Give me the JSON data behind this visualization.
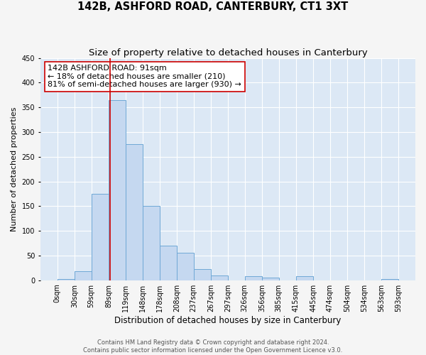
{
  "title": "142B, ASHFORD ROAD, CANTERBURY, CT1 3XT",
  "subtitle": "Size of property relative to detached houses in Canterbury",
  "xlabel": "Distribution of detached houses by size in Canterbury",
  "ylabel": "Number of detached properties",
  "footer_line1": "Contains HM Land Registry data © Crown copyright and database right 2024.",
  "footer_line2": "Contains public sector information licensed under the Open Government Licence v3.0.",
  "bin_edges": [
    0,
    30,
    59,
    89,
    119,
    148,
    178,
    208,
    237,
    267,
    297,
    326,
    356,
    385,
    415,
    445,
    474,
    504,
    534,
    563,
    593
  ],
  "bin_labels": [
    "0sqm",
    "30sqm",
    "59sqm",
    "89sqm",
    "119sqm",
    "148sqm",
    "178sqm",
    "208sqm",
    "237sqm",
    "267sqm",
    "297sqm",
    "326sqm",
    "356sqm",
    "385sqm",
    "415sqm",
    "445sqm",
    "474sqm",
    "504sqm",
    "534sqm",
    "563sqm",
    "593sqm"
  ],
  "bar_heights": [
    2,
    18,
    175,
    365,
    275,
    150,
    70,
    55,
    23,
    10,
    0,
    8,
    6,
    0,
    8,
    0,
    0,
    0,
    0,
    2
  ],
  "bar_color": "#c5d8f0",
  "bar_edge_color": "#6fa8d6",
  "property_line_x": 91,
  "property_line_color": "#cc0000",
  "annotation_line1": "142B ASHFORD ROAD: 91sqm",
  "annotation_line2": "← 18% of detached houses are smaller (210)",
  "annotation_line3": "81% of semi-detached houses are larger (930) →",
  "annotation_box_facecolor": "#ffffff",
  "annotation_box_edgecolor": "#cc0000",
  "ylim": [
    0,
    450
  ],
  "yticks": [
    0,
    50,
    100,
    150,
    200,
    250,
    300,
    350,
    400,
    450
  ],
  "background_color": "#dce8f5",
  "grid_color": "#ffffff",
  "fig_background": "#f5f5f5",
  "title_fontsize": 10.5,
  "subtitle_fontsize": 9.5,
  "xlabel_fontsize": 8.5,
  "ylabel_fontsize": 8,
  "tick_fontsize": 7,
  "annotation_fontsize": 8,
  "footer_fontsize": 6
}
